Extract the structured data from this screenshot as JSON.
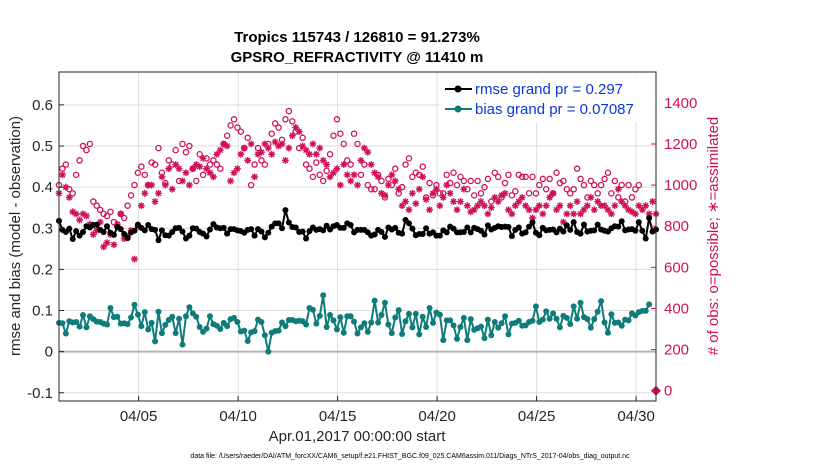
{
  "chart_data": {
    "type": "line",
    "title_line1": "Tropics 115743 / 126810 = 91.273%",
    "title_line2": "GPSRO_REFRACTIVITY @ 11410 m",
    "xlabel": "Apr.01,2017 00:00:00 start",
    "ylabel_left": "rmse and bias (model - observation)",
    "ylabel_right": "# of obs: o=possible; ∗=assimilated",
    "footnote": "data file: /Users/raeder/DAI/ATM_forcXX/CAM6_setup/f.e21.FHIST_BGC.f09_025.CAM6assim.011/Diags_NTrS_2017-04/obs_diag_output.nc",
    "x_range_days": [
      1,
      31
    ],
    "x_ticks": [
      {
        "day": 5,
        "label": "04/05"
      },
      {
        "day": 10,
        "label": "04/10"
      },
      {
        "day": 15,
        "label": "04/15"
      },
      {
        "day": 20,
        "label": "04/20"
      },
      {
        "day": 25,
        "label": "04/25"
      },
      {
        "day": 30,
        "label": "04/30"
      }
    ],
    "y_left_range": [
      -0.12,
      0.68
    ],
    "y_left_ticks": [
      "-0.1",
      "0",
      "0.1",
      "0.2",
      "0.3",
      "0.4",
      "0.5",
      "0.6"
    ],
    "y_right_range": [
      -50,
      1550
    ],
    "y_right_ticks": [
      "0",
      "200",
      "400",
      "600",
      "800",
      "1000",
      "1200",
      "1400"
    ],
    "colors": {
      "rmse": "#000000",
      "bias": "#0e7d7a",
      "obs": "#d0115a",
      "grid": "#dcdcdc",
      "zero_line": "#b3b3b3",
      "legend_text": "#0b37d6"
    },
    "legend": [
      {
        "name": "rmse",
        "label": "rmse grand pr = 0.297"
      },
      {
        "name": "bias",
        "label": "bias grand pr = 0.07087"
      }
    ],
    "series": [
      {
        "name": "rmse",
        "axis": "left",
        "values": [
          0.318,
          0.296,
          0.291,
          0.299,
          0.274,
          0.293,
          0.282,
          0.291,
          0.305,
          0.302,
          0.308,
          0.309,
          0.296,
          0.291,
          0.305,
          0.289,
          0.284,
          0.303,
          0.298,
          0.286,
          0.276,
          0.29,
          0.294,
          0.309,
          0.301,
          0.295,
          0.308,
          0.298,
          0.296,
          0.271,
          0.295,
          0.283,
          0.282,
          0.291,
          0.3,
          0.301,
          0.292,
          0.275,
          0.282,
          0.3,
          0.299,
          0.291,
          0.287,
          0.28,
          0.297,
          0.31,
          0.302,
          0.3,
          0.301,
          0.287,
          0.298,
          0.298,
          0.295,
          0.293,
          0.289,
          0.296,
          0.298,
          0.282,
          0.298,
          0.292,
          0.278,
          0.289,
          0.304,
          0.312,
          0.312,
          0.3,
          0.344,
          0.314,
          0.303,
          0.302,
          0.291,
          0.292,
          0.275,
          0.293,
          0.302,
          0.296,
          0.298,
          0.295,
          0.306,
          0.297,
          0.305,
          0.308,
          0.301,
          0.301,
          0.312,
          0.308,
          0.29,
          0.296,
          0.296,
          0.296,
          0.29,
          0.282,
          0.285,
          0.296,
          0.291,
          0.279,
          0.302,
          0.297,
          0.301,
          0.289,
          0.287,
          0.32,
          0.312,
          0.299,
          0.283,
          0.286,
          0.286,
          0.3,
          0.287,
          0.29,
          0.282,
          0.282,
          0.295,
          0.29,
          0.304,
          0.299,
          0.29,
          0.29,
          0.291,
          0.302,
          0.29,
          0.301,
          0.298,
          0.294,
          0.285,
          0.307,
          0.297,
          0.301,
          0.305,
          0.303,
          0.304,
          0.303,
          0.281,
          0.296,
          0.302,
          0.287,
          0.29,
          0.304,
          0.314,
          0.289,
          0.283,
          0.301,
          0.295,
          0.296,
          0.297,
          0.29,
          0.299,
          0.292,
          0.307,
          0.296,
          0.315,
          0.291,
          0.287,
          0.309,
          0.292,
          0.294,
          0.295,
          0.309,
          0.297,
          0.294,
          0.292,
          0.3,
          0.305,
          0.304,
          0.317,
          0.295,
          0.297,
          0.298,
          0.294,
          0.315,
          0.294,
          0.275,
          0.325,
          0.292,
          0.297
        ]
      },
      {
        "name": "bias",
        "axis": "left",
        "values": [
          0.07,
          0.069,
          0.044,
          0.074,
          0.071,
          0.072,
          0.061,
          0.089,
          0.059,
          0.086,
          0.079,
          0.073,
          0.072,
          0.068,
          0.066,
          0.106,
          0.084,
          0.085,
          0.068,
          0.069,
          0.067,
          0.083,
          0.114,
          0.09,
          0.062,
          0.096,
          0.054,
          0.07,
          0.025,
          0.097,
          0.045,
          0.065,
          0.077,
          0.085,
          0.045,
          0.08,
          0.017,
          0.086,
          0.108,
          0.093,
          0.085,
          0.06,
          0.048,
          0.056,
          0.086,
          0.067,
          0.063,
          0.055,
          0.07,
          0.062,
          0.079,
          0.082,
          0.072,
          0.049,
          0.051,
          0.026,
          0.047,
          0.05,
          0.078,
          0.072,
          0.04,
          0.0,
          0.046,
          0.05,
          0.051,
          0.071,
          0.062,
          0.077,
          0.077,
          0.074,
          0.075,
          0.074,
          0.066,
          0.106,
          0.102,
          0.068,
          0.087,
          0.137,
          0.06,
          0.089,
          0.076,
          0.054,
          0.084,
          0.046,
          0.086,
          0.086,
          0.073,
          0.044,
          0.059,
          0.069,
          0.048,
          0.071,
          0.124,
          0.071,
          0.089,
          0.119,
          0.066,
          0.045,
          0.083,
          0.101,
          0.043,
          0.074,
          0.092,
          0.059,
          0.092,
          0.042,
          0.085,
          0.06,
          0.106,
          0.07,
          0.095,
          0.09,
          0.028,
          0.076,
          0.076,
          0.064,
          0.031,
          0.06,
          0.082,
          0.028,
          0.079,
          0.053,
          0.057,
          0.061,
          0.033,
          0.078,
          0.04,
          0.072,
          0.058,
          0.069,
          0.086,
          0.042,
          0.068,
          0.07,
          0.075,
          0.063,
          0.064,
          0.072,
          0.075,
          0.11,
          0.072,
          0.078,
          0.098,
          0.08,
          0.093,
          0.08,
          0.059,
          0.087,
          0.082,
          0.067,
          0.11,
          0.08,
          0.119,
          0.084,
          0.079,
          0.058,
          0.079,
          0.097,
          0.123,
          0.071,
          0.046,
          0.091,
          0.07,
          0.071,
          0.063,
          0.078,
          0.076,
          0.093,
          0.088,
          0.096,
          0.099,
          0.099,
          0.115
        ]
      },
      {
        "name": "obs_possible",
        "axis": "right",
        "marker": "o",
        "values": [
          1000,
          1080,
          1100,
          980,
          960,
          1050,
          1120,
          1190,
          1170,
          1200,
          920,
          900,
          880,
          860,
          850,
          870,
          820,
          800,
          860,
          840,
          900,
          950,
          1000,
          1060,
          1090,
          1050,
          1000,
          1110,
          1100,
          1180,
          1060,
          1010,
          1120,
          1100,
          1170,
          1020,
          1200,
          1160,
          1190,
          1080,
          1020,
          1150,
          1050,
          1130,
          1100,
          1120,
          1100,
          1080,
          1200,
          1240,
          1290,
          1320,
          1280,
          1260,
          1180,
          1230,
          1000,
          1100,
          1180,
          1120,
          1100,
          1200,
          1250,
          1300,
          1280,
          1220,
          1320,
          1360,
          1310,
          1260,
          1180,
          1230,
          1100,
          1080,
          1040,
          1110,
          1050,
          1020,
          1070,
          1150,
          1240,
          1320,
          1250,
          1200,
          1120,
          1100,
          1250,
          1200,
          1050,
          1100,
          1000,
          980,
          980,
          1050,
          1020,
          940,
          1030,
          1000,
          1080,
          960,
          990,
          1100,
          1130,
          1040,
          1060,
          1050,
          1090,
          940,
          1010,
          950,
          1000,
          960,
          960,
          1050,
          1010,
          1060,
          1000,
          1040,
          1020,
          980,
          1020,
          950,
          1020,
          960,
          990,
          1030,
          920,
          1060,
          1040,
          940,
          1010,
          1050,
          950,
          970,
          1050,
          1040,
          1040,
          960,
          1040,
          960,
          1000,
          1030,
          980,
          1030,
          960,
          1060,
          1010,
          1020,
          980,
          960,
          980,
          1080,
          1030,
          1000,
          940,
          1020,
          1000,
          960,
          1000,
          1030,
          1060,
          960,
          1020,
          940,
          1000,
          920,
          1000,
          940,
          980,
          1000
        ]
      },
      {
        "name": "obs_assimilated",
        "axis": "right",
        "marker": "*",
        "values": [
          960,
          1050,
          990,
          940,
          870,
          860,
          830,
          860,
          850,
          810,
          760,
          780,
          820,
          700,
          720,
          760,
          710,
          810,
          860,
          740,
          750,
          780,
          640,
          800,
          900,
          960,
          1000,
          1000,
          920,
          960,
          1040,
          1000,
          1080,
          980,
          1100,
          1080,
          1020,
          1060,
          1000,
          1080,
          1100,
          1090,
          1130,
          1080,
          1060,
          1040,
          1150,
          1170,
          1200,
          1190,
          1020,
          1060,
          1080,
          1150,
          1180,
          1120,
          1200,
          1040,
          1150,
          1160,
          1200,
          1180,
          1150,
          1210,
          1190,
          1200,
          1120,
          1180,
          1240,
          1280,
          1260,
          1190,
          1170,
          1150,
          1200,
          1150,
          1180,
          1120,
          1100,
          1040,
          1060,
          1080,
          1000,
          1100,
          1050,
          1020,
          1050,
          1000,
          1120,
          1180,
          1160,
          1100,
          1060,
          1040,
          960,
          950,
          1000,
          1050,
          1020,
          980,
          900,
          920,
          880,
          960,
          910,
          980,
          1040,
          930,
          880,
          960,
          980,
          900,
          940,
          1000,
          960,
          920,
          880,
          920,
          980,
          900,
          870,
          880,
          900,
          920,
          900,
          860,
          890,
          940,
          920,
          950,
          960,
          880,
          860,
          900,
          920,
          940,
          900,
          880,
          840,
          880,
          900,
          860,
          900,
          940,
          960,
          880,
          900,
          820,
          860,
          900,
          860,
          920,
          860,
          880,
          900,
          940,
          880,
          920,
          900,
          900,
          880,
          860,
          900,
          980,
          920,
          900,
          880,
          870,
          860,
          900,
          880,
          900,
          860,
          920,
          860
        ]
      }
    ]
  }
}
